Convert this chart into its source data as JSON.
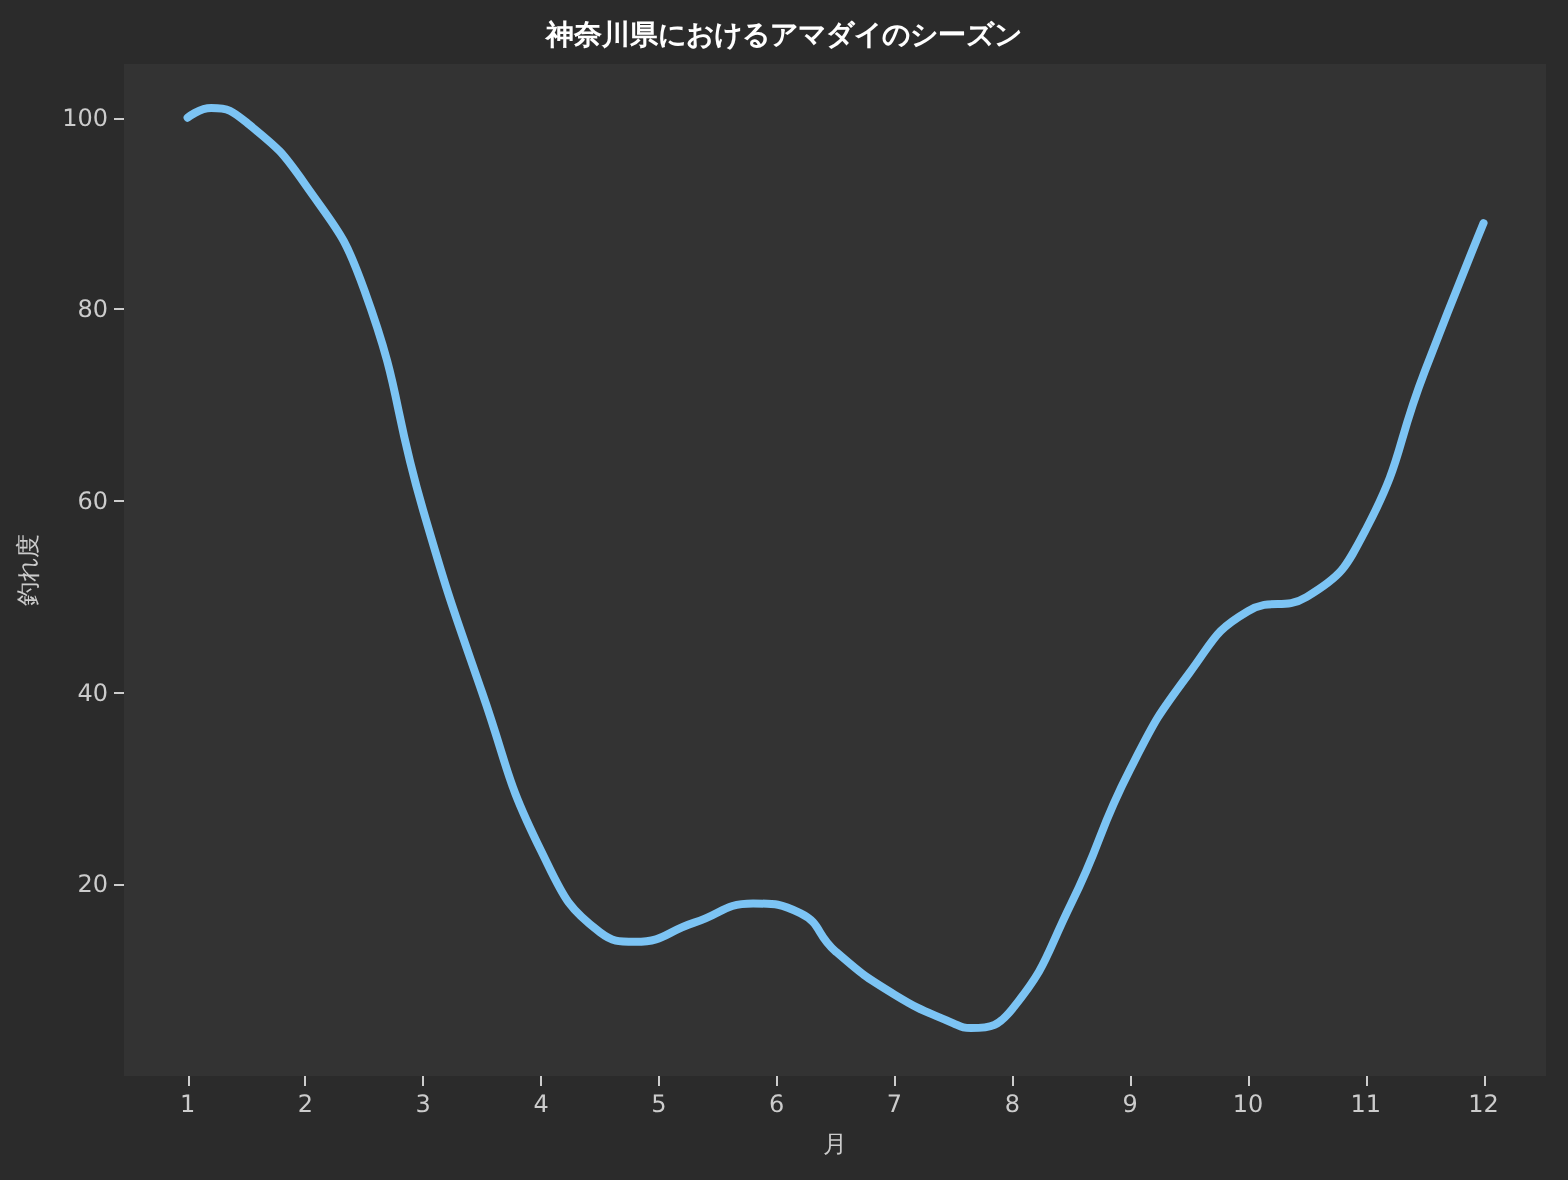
{
  "chart_data": {
    "type": "line",
    "title": "神奈川県におけるアマダイのシーズン",
    "xlabel": "月",
    "ylabel": "釣れ度",
    "x": [
      1,
      1.2,
      1.5,
      2,
      2.5,
      3,
      3.5,
      4,
      4.5,
      4.8,
      5.3,
      5.8,
      6.2,
      6.5,
      7,
      7.5,
      7.65,
      8,
      8.5,
      9,
      9.5,
      10,
      10.5,
      11,
      11.5,
      12
    ],
    "series": [
      {
        "color": "#7cc4f4",
        "values": [
          100,
          101,
          99.5,
          93,
          82,
          59,
          40,
          23.5,
          15,
          14,
          16,
          18,
          17,
          13,
          8.5,
          5.5,
          5,
          7,
          18,
          32,
          42,
          48.5,
          50,
          57,
          73.5,
          89
        ]
      }
    ],
    "xlim": [
      0.46,
      12.53
    ],
    "xticks": [
      1,
      2,
      3,
      4,
      5,
      6,
      7,
      8,
      9,
      10,
      11,
      12
    ],
    "ylim": [
      0,
      105.6
    ],
    "yticks": [
      20,
      40,
      60,
      80,
      100
    ],
    "grid": false,
    "marker": "none",
    "line_style": "solid"
  }
}
